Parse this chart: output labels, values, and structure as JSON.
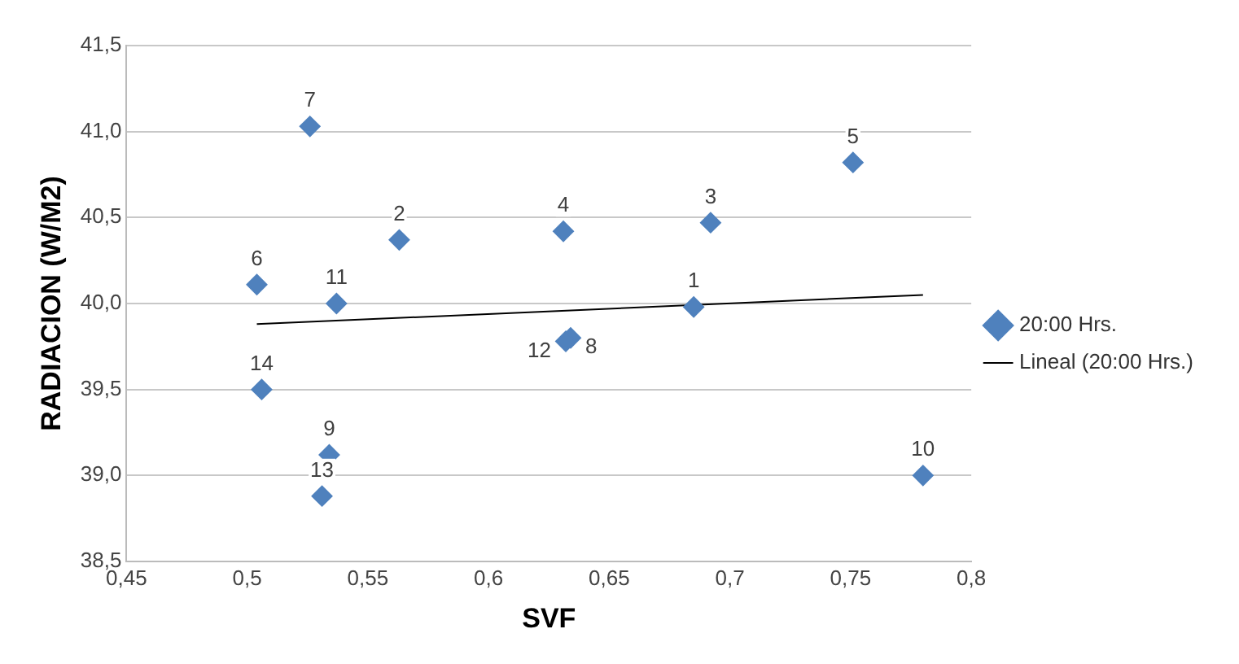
{
  "chart_data": {
    "type": "scatter",
    "xlabel": "SVF",
    "ylabel": "RADIACION (W/M2)",
    "xlim": [
      0.45,
      0.8
    ],
    "xticks": [
      {
        "value": 0.45,
        "label": "0,45"
      },
      {
        "value": 0.5,
        "label": "0,5"
      },
      {
        "value": 0.55,
        "label": "0,55"
      },
      {
        "value": 0.6,
        "label": "0,6"
      },
      {
        "value": 0.65,
        "label": "0,65"
      },
      {
        "value": 0.7,
        "label": "0,7"
      },
      {
        "value": 0.75,
        "label": "0,75"
      },
      {
        "value": 0.8,
        "label": "0,8"
      }
    ],
    "ylim": [
      38.5,
      41.5
    ],
    "yticks": [
      {
        "value": 38.5,
        "label": "38,5"
      },
      {
        "value": 39,
        "label": "39,0"
      },
      {
        "value": 39.5,
        "label": "39,5"
      },
      {
        "value": 40,
        "label": "40,0"
      },
      {
        "value": 40.5,
        "label": "40,5"
      },
      {
        "value": 41,
        "label": "41,0"
      },
      {
        "value": 41.5,
        "label": "41,5"
      }
    ],
    "grid": "y",
    "legend": "right",
    "series": [
      {
        "name": "20:00 Hrs.",
        "color": "#4f81bd",
        "marker": "diamond",
        "x": [
          0.685,
          0.563,
          0.692,
          0.631,
          0.751,
          0.504,
          0.526,
          0.634,
          0.534,
          0.78,
          0.537,
          0.632,
          0.531,
          0.506
        ],
        "values": [
          39.98,
          40.37,
          40.47,
          40.42,
          40.82,
          40.11,
          41.03,
          39.8,
          39.12,
          39.0,
          40.0,
          39.78,
          38.88,
          39.5
        ]
      },
      {
        "name": "Lineal (20:00 Hrs.)",
        "type": "line",
        "color": "#000000",
        "marker": "none",
        "x": [
          0.504,
          0.78
        ],
        "values": [
          39.88,
          40.05
        ]
      }
    ],
    "annotations": [
      {
        "text": "1",
        "x": 0.685,
        "y": 39.98
      },
      {
        "text": "2",
        "x": 0.563,
        "y": 40.37
      },
      {
        "text": "3",
        "x": 0.692,
        "y": 40.47
      },
      {
        "text": "4",
        "x": 0.631,
        "y": 40.42
      },
      {
        "text": "5",
        "x": 0.751,
        "y": 40.82
      },
      {
        "text": "6",
        "x": 0.504,
        "y": 40.11
      },
      {
        "text": "7",
        "x": 0.526,
        "y": 41.03
      },
      {
        "text": "8",
        "x": 0.634,
        "y": 39.8
      },
      {
        "text": "9",
        "x": 0.534,
        "y": 39.12
      },
      {
        "text": "10",
        "x": 0.78,
        "y": 39.0
      },
      {
        "text": "11",
        "x": 0.537,
        "y": 40.0
      },
      {
        "text": "12",
        "x": 0.632,
        "y": 39.78
      },
      {
        "text": "13",
        "x": 0.531,
        "y": 38.88
      },
      {
        "text": "14",
        "x": 0.506,
        "y": 39.5
      }
    ]
  }
}
